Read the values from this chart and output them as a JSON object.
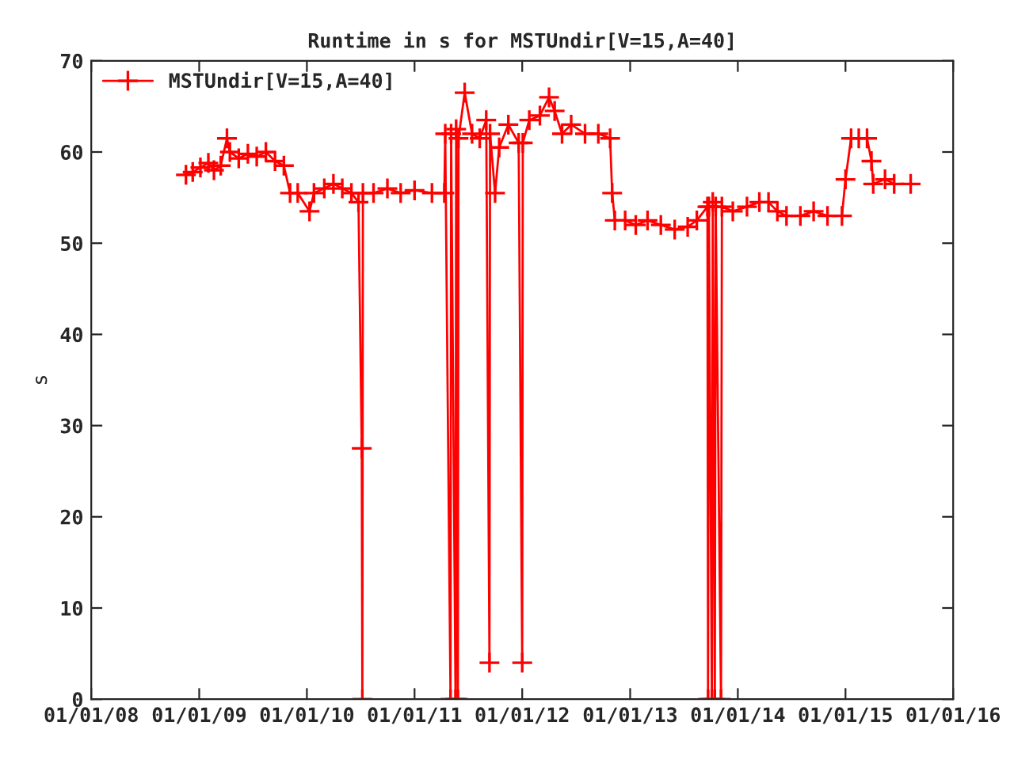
{
  "chart_data": {
    "type": "line",
    "title": "Runtime in s for MSTUndir[V=15,A=40]",
    "ylabel": "s",
    "x": [
      "2008-11-17",
      "2008-12-10",
      "2009-01-05",
      "2009-02-01",
      "2009-02-20",
      "2009-03-15",
      "2009-04-05",
      "2009-04-15",
      "2009-05-15",
      "2009-06-15",
      "2009-07-15",
      "2009-08-15",
      "2009-09-15",
      "2009-10-15",
      "2009-11-05",
      "2009-12-01",
      "2010-01-10",
      "2010-01-25",
      "2010-03-01",
      "2010-04-01",
      "2010-05-01",
      "2010-06-01",
      "2010-06-25",
      "2010-07-06",
      "2010-07-08",
      "2010-07-10",
      "2010-08-15",
      "2010-10-01",
      "2010-11-15",
      "2011-01-01",
      "2011-03-01",
      "2011-04-12",
      "2011-04-15",
      "2011-05-03",
      "2011-05-05",
      "2011-05-20",
      "2011-05-22",
      "2011-05-28",
      "2011-05-30",
      "2011-06-20",
      "2011-07-15",
      "2011-08-10",
      "2011-09-01",
      "2011-09-12",
      "2011-09-14",
      "2011-10-01",
      "2011-10-15",
      "2011-11-15",
      "2011-12-20",
      "2012-01-01",
      "2012-01-03",
      "2012-01-25",
      "2012-03-01",
      "2012-04-01",
      "2012-04-20",
      "2012-05-15",
      "2012-06-15",
      "2012-08-01",
      "2012-09-15",
      "2012-10-25",
      "2012-11-01",
      "2012-11-10",
      "2012-12-15",
      "2013-01-20",
      "2013-03-01",
      "2013-04-15",
      "2013-06-01",
      "2013-07-15",
      "2013-08-15",
      "2013-09-20",
      "2013-09-22",
      "2013-09-25",
      "2013-10-05",
      "2013-10-08",
      "2013-10-15",
      "2013-10-18",
      "2013-11-05",
      "2013-11-08",
      "2013-12-15",
      "2014-02-01",
      "2014-03-15",
      "2014-04-15",
      "2014-05-15",
      "2014-06-15",
      "2014-08-01",
      "2014-09-15",
      "2014-11-01",
      "2014-12-20",
      "2015-01-01",
      "2015-01-20",
      "2015-02-15",
      "2015-03-15",
      "2015-03-30",
      "2015-04-05",
      "2015-05-15",
      "2015-06-15",
      "2015-08-10"
    ],
    "series": [
      {
        "name": "MSTUndir[V=15,A=40]",
        "color": "#ff0000",
        "values": [
          57.5,
          57.8,
          58.3,
          58.8,
          58.0,
          58.5,
          61.5,
          60.0,
          59.3,
          59.8,
          59.5,
          60.0,
          59.0,
          58.5,
          55.5,
          55.5,
          53.5,
          55.5,
          56.0,
          56.5,
          56.0,
          55.5,
          54.5,
          27.5,
          0,
          55.5,
          55.5,
          56.0,
          55.5,
          55.8,
          55.5,
          55.5,
          62.0,
          0,
          62.0,
          0,
          62.5,
          0,
          61.5,
          66.5,
          62.0,
          61.5,
          63.5,
          4.0,
          62.0,
          55.5,
          60.5,
          63.0,
          61.0,
          4.0,
          61.0,
          63.5,
          64.0,
          66.0,
          64.5,
          62.0,
          63.0,
          62.0,
          62.0,
          61.5,
          55.5,
          52.5,
          52.5,
          52.0,
          52.5,
          52.0,
          51.5,
          51.8,
          52.5,
          54.0,
          0,
          54.0,
          0,
          54.5,
          0,
          54.0,
          0,
          54.0,
          53.5,
          54.0,
          54.5,
          54.5,
          53.5,
          53.0,
          53.0,
          53.5,
          53.0,
          53.0,
          57.0,
          61.5,
          61.5,
          61.5,
          59.0,
          56.5,
          57.0,
          56.5,
          56.5
        ]
      }
    ],
    "xlim": [
      "2008-01-01",
      "2016-01-01"
    ],
    "xticks": [
      {
        "value": "2008-01-01",
        "label": "01/01/08"
      },
      {
        "value": "2009-01-01",
        "label": "01/01/09"
      },
      {
        "value": "2010-01-01",
        "label": "01/01/10"
      },
      {
        "value": "2011-01-01",
        "label": "01/01/11"
      },
      {
        "value": "2012-01-01",
        "label": "01/01/12"
      },
      {
        "value": "2013-01-01",
        "label": "01/01/13"
      },
      {
        "value": "2014-01-01",
        "label": "01/01/14"
      },
      {
        "value": "2015-01-01",
        "label": "01/01/15"
      },
      {
        "value": "2016-01-01",
        "label": "01/01/16"
      }
    ],
    "ylim": [
      0,
      70
    ],
    "yticks": [
      0,
      10,
      20,
      30,
      40,
      50,
      60,
      70
    ],
    "marker": "cross",
    "line_style": "solid",
    "legend": "top left",
    "grid": false
  }
}
